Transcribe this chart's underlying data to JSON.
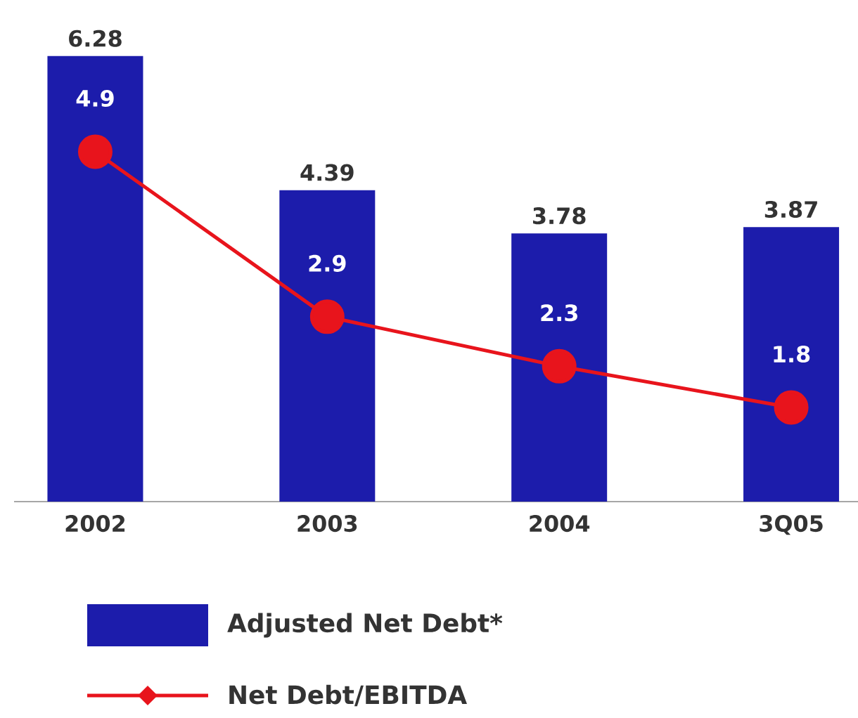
{
  "chart_data": {
    "type": "bar",
    "categories": [
      "2002",
      "2003",
      "2004",
      "3Q05"
    ],
    "series": [
      {
        "name": "Adjusted Net Debt*",
        "color": "#1c1cab",
        "values": [
          6.28,
          4.39,
          3.78,
          3.87
        ]
      },
      {
        "name": "Net Debt/EBITDA",
        "type": "line",
        "axis": "y2",
        "color": "#e8141c",
        "values": [
          4.9,
          2.9,
          2.3,
          1.8
        ]
      }
    ],
    "data_labels": true,
    "tick_labels": "x",
    "legend": "bottom",
    "marker": "circle"
  }
}
